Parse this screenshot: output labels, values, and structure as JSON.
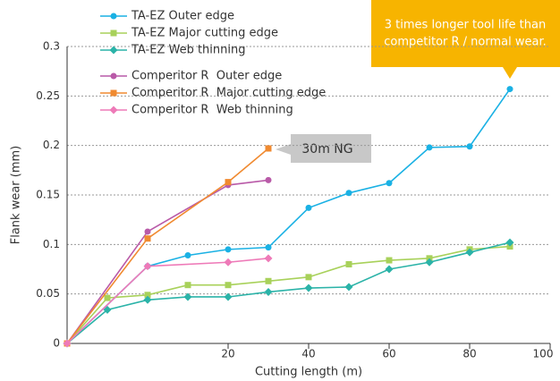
{
  "chart_data": {
    "type": "line",
    "xlabel": "Cutting length (m)",
    "ylabel": "Flank wear (mm)",
    "xlim": [
      0,
      100
    ],
    "xticks": [
      20,
      40,
      60,
      80,
      100
    ],
    "ylim": [
      0,
      0.3
    ],
    "yticks": [
      0,
      0.05,
      0.1,
      0.15,
      0.2,
      0.25,
      0.3
    ],
    "grid": true,
    "legend": "upper left",
    "series": [
      {
        "name": "TA-EZ Outer edge",
        "color": "#1ab1e4",
        "marker": "circle",
        "x": [
          0,
          10,
          15,
          20,
          30,
          40,
          50,
          60,
          70,
          80,
          90
        ],
        "values": [
          0,
          0.078,
          0.089,
          0.095,
          0.097,
          0.137,
          0.152,
          0.162,
          0.198,
          0.199,
          0.257
        ]
      },
      {
        "name": "TA-EZ Major cutting edge",
        "color": "#a8d15a",
        "marker": "square",
        "x": [
          0,
          5,
          10,
          15,
          20,
          30,
          40,
          50,
          60,
          70,
          80,
          90
        ],
        "values": [
          0,
          0.046,
          0.049,
          0.059,
          0.059,
          0.063,
          0.067,
          0.08,
          0.084,
          0.086,
          0.095,
          0.098
        ]
      },
      {
        "name": "TA-EZ Web thinning",
        "color": "#2bb3a8",
        "marker": "diamond",
        "x": [
          0,
          5,
          10,
          15,
          20,
          30,
          40,
          50,
          60,
          70,
          80,
          90
        ],
        "values": [
          0,
          0.034,
          0.044,
          0.047,
          0.047,
          0.052,
          0.056,
          0.057,
          0.075,
          0.082,
          0.092,
          0.102
        ]
      },
      {
        "name": "Comperitor R  Outer edge",
        "color": "#b95aa8",
        "marker": "circle",
        "x": [
          0,
          10,
          20,
          30
        ],
        "values": [
          0,
          0.113,
          0.16,
          0.165
        ]
      },
      {
        "name": "Comperitor R  Major cutting edge",
        "color": "#f08a30",
        "marker": "square",
        "x": [
          0,
          10,
          20,
          30
        ],
        "values": [
          0,
          0.106,
          0.163,
          0.197
        ]
      },
      {
        "name": "Comperitor R  Web thinning",
        "color": "#ee7ab8",
        "marker": "diamond",
        "x": [
          0,
          10,
          20,
          30
        ],
        "values": [
          0,
          0.078,
          0.082,
          0.086
        ]
      }
    ],
    "annotations": [
      {
        "lines": [
          "3 times longer tool life than",
          "competitor R / normal wear."
        ],
        "color": "#f7b400"
      },
      {
        "lines": [
          "30m NG"
        ],
        "color": "#c8c8c8"
      }
    ]
  }
}
